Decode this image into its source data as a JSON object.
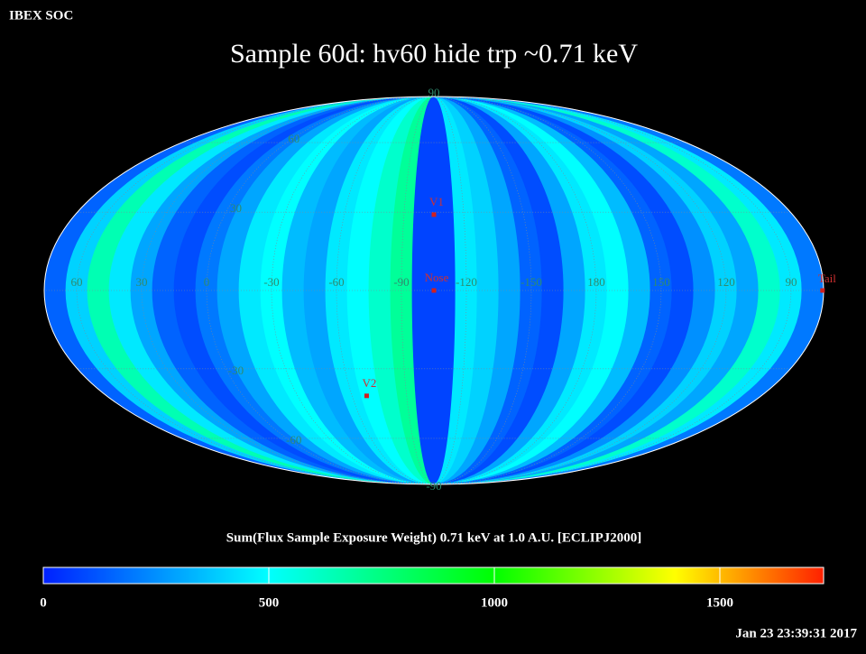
{
  "header": "IBEX SOC",
  "chart_data": {
    "type": "mollweide",
    "title": "Sample 60d: hv60 hide trp ~0.71 keV",
    "colorbar_label": "Sum(Flux Sample Exposure Weight)  0.71 keV at 1.0 A.U. [ECLIPJ2000]",
    "lon_center": -105,
    "lon_bins": [
      75,
      65,
      55,
      45,
      35,
      25,
      15,
      5,
      -5,
      -15,
      -25,
      -35,
      -45,
      -55,
      -65,
      -75,
      -85,
      -95,
      -105,
      -115,
      -125,
      -135,
      -145,
      -155,
      -165,
      -175,
      -185,
      -195,
      -205,
      -215,
      -225,
      -235,
      -245,
      -255,
      -265,
      -275,
      -285
    ],
    "values": [
      150,
      400,
      650,
      450,
      300,
      150,
      100,
      200,
      300,
      450,
      500,
      350,
      300,
      450,
      500,
      600,
      700,
      80,
      80,
      450,
      400,
      300,
      150,
      100,
      300,
      450,
      500,
      350,
      150,
      100,
      250,
      400,
      300,
      600,
      450,
      200
    ],
    "colorscale": [
      [
        0,
        "#0020ff"
      ],
      [
        500,
        "#00ffff"
      ],
      [
        1000,
        "#00ff00"
      ],
      [
        1400,
        "#ffff00"
      ],
      [
        1730,
        "#ff2000"
      ]
    ],
    "clim": [
      0,
      1730
    ],
    "cticks": [
      0,
      500,
      1000,
      1500
    ],
    "lon_ticks": [
      60,
      30,
      0,
      -30,
      -60,
      -90,
      -120,
      -150,
      180,
      150,
      120,
      90
    ],
    "lat_ticks": [
      90,
      60,
      30,
      -30,
      -60,
      -90
    ],
    "markers": [
      {
        "name": "V1",
        "lon": 255,
        "lat": 29
      },
      {
        "name": "Nose",
        "lon": 255,
        "lat": 0
      },
      {
        "name": "V2",
        "lon": 292,
        "lat": -41
      },
      {
        "name": "Tail",
        "lon": 75,
        "lat": 0
      }
    ]
  },
  "timestamp": "Jan 23 23:39:31 2017"
}
